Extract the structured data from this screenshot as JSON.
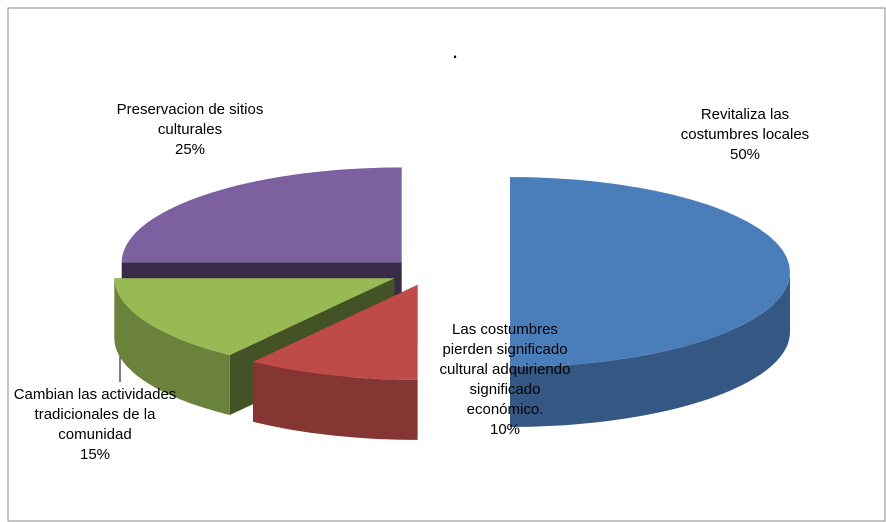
{
  "chart_data": {
    "type": "pie",
    "title": ".",
    "categories": [
      "Revitaliza las costumbres locales",
      "Las costumbres pierden significado cultural adquiriendo significado económico.",
      "Cambian las actividades tradicionales de la comunidad",
      "Preservacion de sitios culturales"
    ],
    "values": [
      50,
      10,
      15,
      25
    ],
    "value_labels": [
      "50%",
      "10%",
      "15%",
      "25%"
    ],
    "colors": [
      "#4a7ebb",
      "#be4b48",
      "#98b954",
      "#7d60a0"
    ]
  }
}
